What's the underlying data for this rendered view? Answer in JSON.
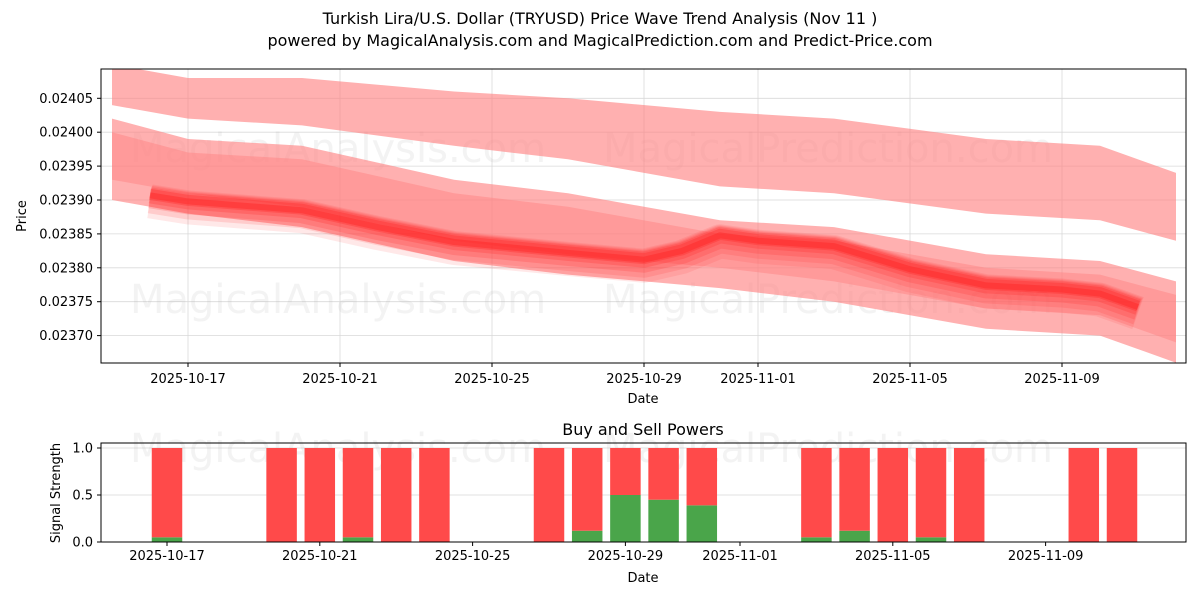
{
  "header": {
    "title": "Turkish Lira/U.S. Dollar (TRYUSD) Price Wave Trend Analysis (Nov 11 )",
    "subtitle": "powered by MagicalAnalysis.com and MagicalPrediction.com and Predict-Price.com"
  },
  "watermarks": [
    "MagicalAnalysis.com",
    "MagicalPrediction.com"
  ],
  "colors": {
    "band_light": "#ff8080",
    "band_core": "#ff2020",
    "sell": "#ff4a4a",
    "buy": "#4aa54a",
    "grid": "#d9d9d9"
  },
  "chart_data": [
    {
      "type": "area",
      "title": "Turkish Lira/U.S. Dollar (TRYUSD) Price Wave Trend Analysis (Nov 11 )",
      "xlabel": "Date",
      "ylabel": "Price",
      "ylim": [
        0.023664,
        0.024096
      ],
      "grid": true,
      "x_ticks": [
        "2025-10-17",
        "2025-10-21",
        "2025-10-25",
        "2025-10-29",
        "2025-11-01",
        "2025-11-05",
        "2025-11-09"
      ],
      "y_ticks": [
        "0.02370",
        "0.02375",
        "0.02380",
        "0.02385",
        "0.02390",
        "0.02395",
        "0.02400",
        "0.02405"
      ],
      "x": [
        "2025-10-15",
        "2025-10-16",
        "2025-10-17",
        "2025-10-20",
        "2025-10-22",
        "2025-10-24",
        "2025-10-27",
        "2025-10-29",
        "2025-10-30",
        "2025-10-31",
        "2025-11-03",
        "2025-11-04",
        "2025-11-05",
        "2025-11-07",
        "2025-11-10",
        "2025-11-11",
        "2025-11-12"
      ],
      "series": [
        {
          "name": "Upper wave band",
          "x": [
            "2025-10-15",
            "2025-10-17",
            "2025-10-20",
            "2025-10-24",
            "2025-10-27",
            "2025-10-31",
            "2025-11-03",
            "2025-11-07",
            "2025-11-10",
            "2025-11-12"
          ],
          "upper": [
            0.0241,
            0.02408,
            0.02408,
            0.02406,
            0.02405,
            0.02403,
            0.02402,
            0.02399,
            0.02398,
            0.02394
          ],
          "lower": [
            0.02404,
            0.02402,
            0.02401,
            0.02398,
            0.02396,
            0.02392,
            0.02391,
            0.02388,
            0.02387,
            0.02384
          ]
        },
        {
          "name": "Middle wave band",
          "x": [
            "2025-10-15",
            "2025-10-17",
            "2025-10-20",
            "2025-10-24",
            "2025-10-27",
            "2025-10-31",
            "2025-11-03",
            "2025-11-07",
            "2025-11-10",
            "2025-11-12"
          ],
          "upper": [
            0.02402,
            0.02399,
            0.02398,
            0.02393,
            0.02391,
            0.02387,
            0.02386,
            0.02382,
            0.02381,
            0.02378
          ],
          "lower": [
            0.0239,
            0.02388,
            0.02386,
            0.02381,
            0.02379,
            0.02377,
            0.02375,
            0.02371,
            0.0237,
            0.02366
          ]
        },
        {
          "name": "Wave trend (core)",
          "x": [
            "2025-10-16",
            "2025-10-17",
            "2025-10-20",
            "2025-10-22",
            "2025-10-24",
            "2025-10-27",
            "2025-10-29",
            "2025-10-30",
            "2025-10-31",
            "2025-11-01",
            "2025-11-03",
            "2025-11-04",
            "2025-11-05",
            "2025-11-07",
            "2025-11-09",
            "2025-11-10",
            "2025-11-11"
          ],
          "values": [
            0.023907,
            0.023898,
            0.023885,
            0.02386,
            0.023838,
            0.023822,
            0.023812,
            0.023825,
            0.023848,
            0.02384,
            0.023832,
            0.023815,
            0.023798,
            0.023774,
            0.023768,
            0.023762,
            0.023742
          ]
        }
      ]
    },
    {
      "type": "bar",
      "title": "Buy and Sell Powers",
      "xlabel": "Date",
      "ylabel": "Signal Strength",
      "ylim": [
        0,
        1.05
      ],
      "grid": true,
      "x_ticks": [
        "2025-10-17",
        "2025-10-21",
        "2025-10-25",
        "2025-10-29",
        "2025-11-01",
        "2025-11-05",
        "2025-11-09"
      ],
      "y_ticks": [
        "0.0",
        "0.5",
        "1.0"
      ],
      "categories": [
        "2025-10-17",
        "2025-10-20",
        "2025-10-21",
        "2025-10-22",
        "2025-10-23",
        "2025-10-24",
        "2025-10-27",
        "2025-10-28",
        "2025-10-29",
        "2025-10-30",
        "2025-10-31",
        "2025-11-03",
        "2025-11-04",
        "2025-11-05",
        "2025-11-06",
        "2025-11-07",
        "2025-11-10",
        "2025-11-11"
      ],
      "series": [
        {
          "name": "Buy",
          "values": [
            0.05,
            0.0,
            0.0,
            0.05,
            0.0,
            0.0,
            0.0,
            0.12,
            0.5,
            0.45,
            0.39,
            0.05,
            0.12,
            0.0,
            0.05,
            0.0,
            0.0,
            0.0
          ]
        },
        {
          "name": "Sell",
          "values": [
            0.95,
            1.0,
            1.0,
            0.95,
            1.0,
            1.0,
            1.0,
            0.88,
            0.5,
            0.55,
            0.61,
            0.95,
            0.88,
            1.0,
            0.95,
            1.0,
            1.0,
            1.0
          ]
        }
      ]
    }
  ]
}
